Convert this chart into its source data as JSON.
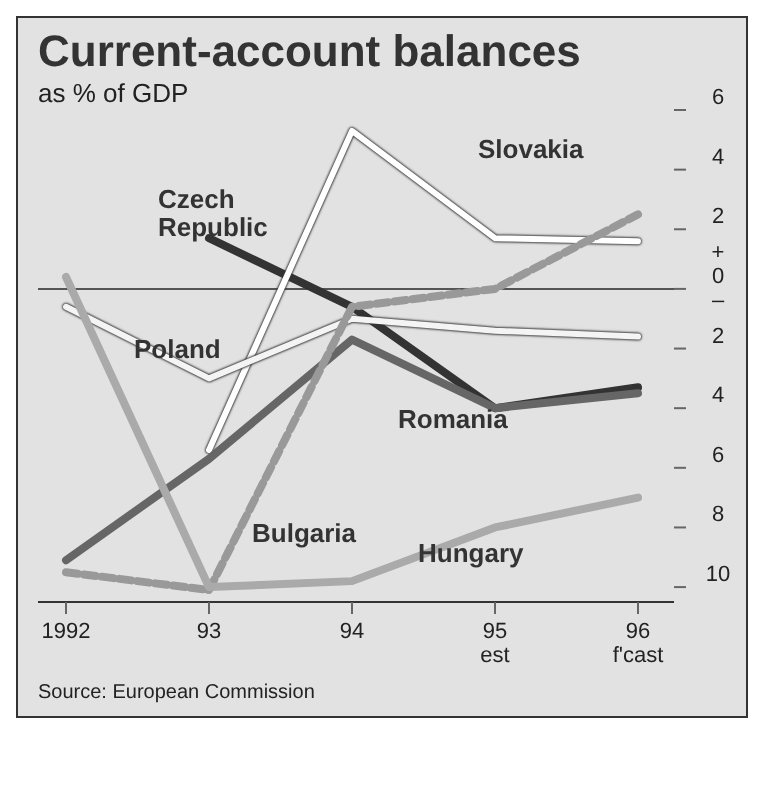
{
  "chart_data": {
    "type": "line",
    "title": "Current-account balances",
    "subtitle": "as % of GDP",
    "categories": [
      "1992",
      "93",
      "94",
      "95\nest",
      "96\nf'cast"
    ],
    "series": [
      {
        "name": "Czech Republic",
        "color": "#333333",
        "values": [
          null,
          1.7,
          -0.6,
          -4.0,
          -3.3
        ]
      },
      {
        "name": "Slovakia",
        "color": "#ffffff",
        "values": [
          null,
          -5.4,
          5.3,
          1.7,
          1.6
        ]
      },
      {
        "name": "Poland",
        "color": "#f4f4f4",
        "values": [
          -0.6,
          -3.0,
          -1.0,
          -1.4,
          -1.6
        ]
      },
      {
        "name": "Romania",
        "color": "#666666",
        "values": [
          -9.1,
          -5.7,
          -1.7,
          -4.0,
          -3.5
        ]
      },
      {
        "name": "Bulgaria",
        "color": "#999999",
        "line_style": "dashed",
        "values": [
          -9.5,
          -10.1,
          -0.6,
          0.0,
          2.5
        ]
      },
      {
        "name": "Hungary",
        "color": "#aaaaaa",
        "values": [
          0.4,
          -10.0,
          -9.8,
          -8.0,
          -7.0
        ]
      }
    ],
    "ylim": [
      -10.5,
      6
    ],
    "yticks": [
      6,
      4,
      2,
      {
        "value": 0,
        "label": "+\n0\n–"
      },
      {
        "value": -2,
        "label": "2"
      },
      {
        "value": -4,
        "label": "4"
      },
      {
        "value": -6,
        "label": "6"
      },
      {
        "value": -8,
        "label": "8"
      },
      {
        "value": -10,
        "label": "10"
      }
    ],
    "ref_lines": [
      {
        "axis": "y",
        "value": 0
      }
    ],
    "marker": "none",
    "line_style": "solid",
    "annotations": [
      "Source: European Commission"
    ]
  }
}
